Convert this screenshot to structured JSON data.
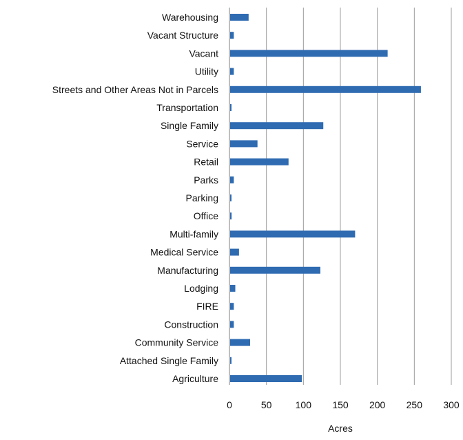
{
  "colors": {
    "bar": "#2f6bb1",
    "grid": "#9c9c9c",
    "axis": "#7f7f7f",
    "text": "#111111"
  },
  "chart_data": {
    "type": "bar",
    "orientation": "horizontal",
    "categories": [
      "Warehousing",
      "Vacant Structure",
      "Vacant",
      "Utility",
      "Streets and Other Areas Not in Parcels",
      "Transportation",
      "Single Family",
      "Service",
      "Retail",
      "Parks",
      "Parking",
      "Office",
      "Multi-family",
      "Medical Service",
      "Manufacturing",
      "Lodging",
      "FIRE",
      "Construction",
      "Community Service",
      "Attached Single Family",
      "Agriculture"
    ],
    "values": [
      25,
      5,
      213,
      5,
      258,
      1,
      126,
      37,
      79,
      5,
      1,
      2,
      169,
      12,
      122,
      7,
      5,
      5,
      27,
      1,
      97
    ],
    "xlim": [
      0,
      300
    ],
    "xticks": [
      "0",
      "50",
      "100",
      "150",
      "200",
      "250",
      "300"
    ],
    "xtick_values": [
      0,
      50,
      100,
      150,
      200,
      250,
      300
    ],
    "xlabel": "Acres",
    "ylabel": "",
    "title": "",
    "grid": "vertical",
    "legend": "none"
  }
}
